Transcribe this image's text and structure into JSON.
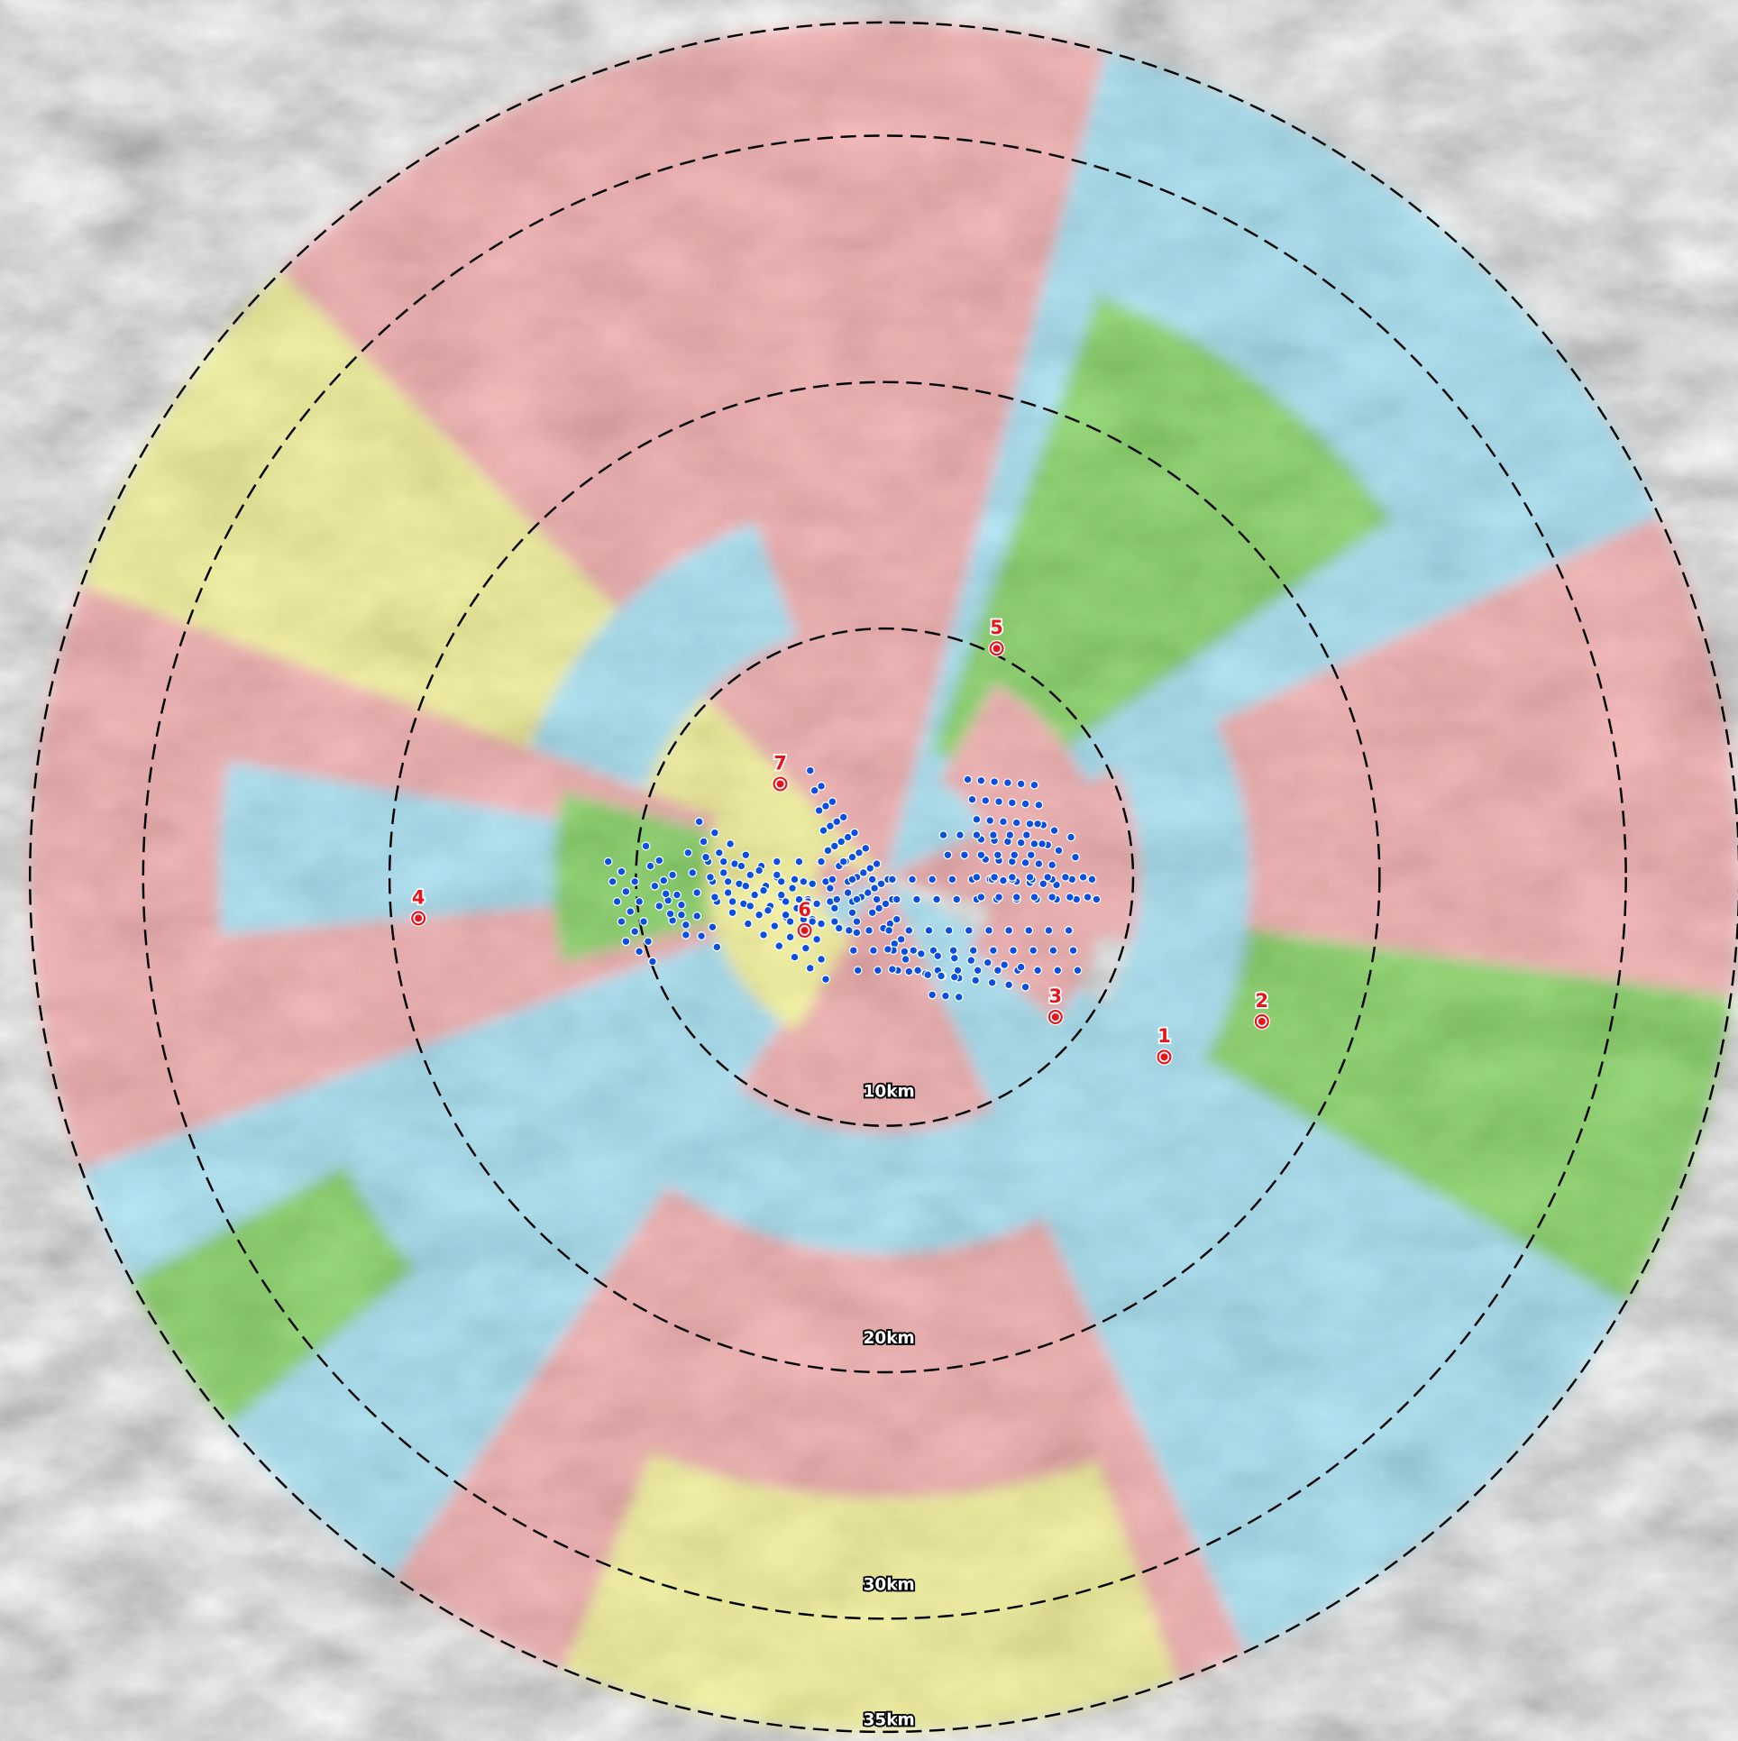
{
  "rings": [
    {
      "label": "10km"
    },
    {
      "label": "20km"
    },
    {
      "label": "30km"
    },
    {
      "label": "35km"
    }
  ],
  "sites": [
    {
      "label": "1"
    },
    {
      "label": "2"
    },
    {
      "label": "3"
    },
    {
      "label": "4"
    },
    {
      "label": "5"
    },
    {
      "label": "6"
    },
    {
      "label": "7"
    }
  ]
}
